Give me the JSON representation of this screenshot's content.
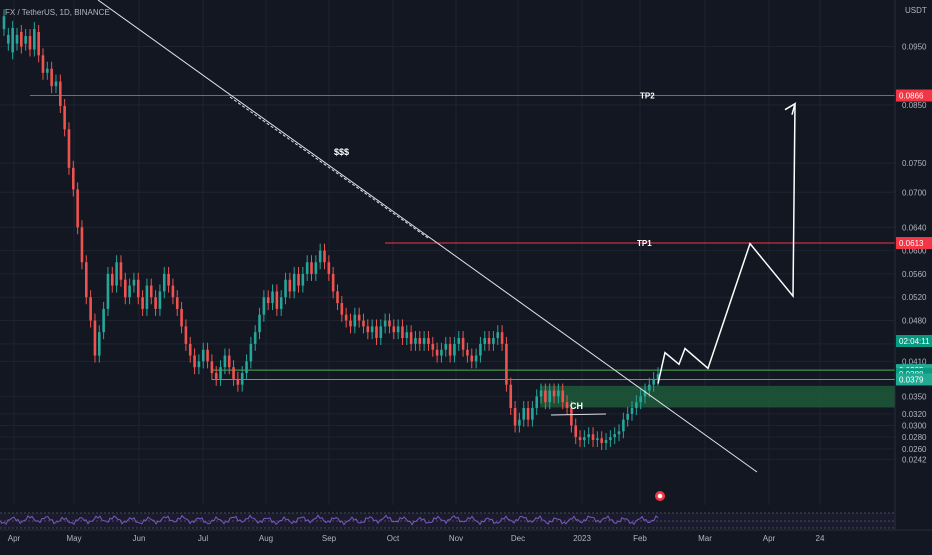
{
  "header": {
    "symbol_line": "FX / TetherUS, 1D, BINANCE"
  },
  "axis": {
    "currency": "USDT"
  },
  "chart_data": {
    "type": "candlestick",
    "xlabel": "",
    "ylabel": "",
    "ylim": [
      0.0218,
      0.1008
    ],
    "yticks": [
      "0.0950",
      "0.0850",
      "0.0750",
      "0.0700",
      "0.0640",
      "0.0600",
      "0.0560",
      "0.0520",
      "0.0480",
      "0.0440",
      "0.0410",
      "0.0350",
      "0.0320",
      "0.0300",
      "0.0280",
      "0.0260",
      "0.0242"
    ],
    "xticks": [
      "Apr",
      "May",
      "Jun",
      "Jul",
      "Aug",
      "Sep",
      "Oct",
      "Nov",
      "Dec",
      "2023",
      "Feb",
      "Mar",
      "Apr",
      "24"
    ],
    "price_badges": [
      {
        "label": "0.0866",
        "value": 0.0866,
        "color": "#f23645"
      },
      {
        "label": "0.0613",
        "value": 0.0613,
        "color": "#f23645"
      },
      {
        "label": "0.0395",
        "value": 0.0395,
        "color": "#22ab94"
      },
      {
        "label": "0.0388",
        "value": 0.0388,
        "color": "#089981"
      },
      {
        "label": "02:04:11",
        "value": 0.0376,
        "color": "#089981"
      },
      {
        "label": "0.0379",
        "value": 0.0379,
        "color": "#22ab94"
      }
    ],
    "levels": [
      {
        "name": "TP2",
        "value": 0.0866,
        "color": "#f23645"
      },
      {
        "name": "TP1",
        "value": 0.0613,
        "color": "#f23645"
      },
      {
        "name": "",
        "value": 0.0395,
        "color": "#4caf50"
      },
      {
        "name": "",
        "value": 0.0379,
        "color": "#4caf50"
      }
    ],
    "zone": {
      "top": 0.0368,
      "bottom": 0.0331,
      "color": "#1e5b3a"
    },
    "annotations": [
      {
        "text": "$$$"
      },
      {
        "text": "CH"
      },
      {
        "text": "TP1"
      },
      {
        "text": "TP2"
      }
    ],
    "price_path": [
      [
        0.098,
        0.1002
      ],
      [
        0.0955,
        0.097
      ],
      [
        0.094,
        0.0982
      ],
      [
        0.0955,
        0.097
      ],
      [
        0.0975,
        0.095
      ],
      [
        0.0955,
        0.0968
      ],
      [
        0.0968,
        0.0945
      ],
      [
        0.0945,
        0.098
      ],
      [
        0.0975,
        0.0935
      ],
      [
        0.0935,
        0.0905
      ],
      [
        0.0905,
        0.0912
      ],
      [
        0.0912,
        0.0882
      ],
      [
        0.0882,
        0.089
      ],
      [
        0.089,
        0.0848
      ],
      [
        0.0848,
        0.0808
      ],
      [
        0.0808,
        0.0742
      ],
      [
        0.0742,
        0.0705
      ],
      [
        0.0705,
        0.064
      ],
      [
        0.064,
        0.058
      ],
      [
        0.058,
        0.052
      ],
      [
        0.052,
        0.048
      ],
      [
        0.048,
        0.042
      ],
      [
        0.042,
        0.046
      ],
      [
        0.046,
        0.05
      ],
      [
        0.05,
        0.056
      ],
      [
        0.056,
        0.054
      ],
      [
        0.054,
        0.058
      ],
      [
        0.058,
        0.055
      ],
      [
        0.055,
        0.052
      ],
      [
        0.052,
        0.054
      ],
      [
        0.054,
        0.055
      ],
      [
        0.055,
        0.052
      ],
      [
        0.052,
        0.05
      ],
      [
        0.05,
        0.054
      ],
      [
        0.054,
        0.052
      ],
      [
        0.052,
        0.05
      ],
      [
        0.05,
        0.053
      ],
      [
        0.053,
        0.056
      ],
      [
        0.056,
        0.054
      ],
      [
        0.054,
        0.052
      ],
      [
        0.052,
        0.05
      ],
      [
        0.05,
        0.047
      ],
      [
        0.047,
        0.044
      ],
      [
        0.044,
        0.042
      ],
      [
        0.042,
        0.04
      ],
      [
        0.04,
        0.041
      ],
      [
        0.041,
        0.043
      ],
      [
        0.043,
        0.041
      ],
      [
        0.041,
        0.039
      ],
      [
        0.039,
        0.038
      ],
      [
        0.038,
        0.04
      ],
      [
        0.04,
        0.042
      ],
      [
        0.042,
        0.04
      ],
      [
        0.04,
        0.038
      ],
      [
        0.038,
        0.037
      ],
      [
        0.037,
        0.039
      ],
      [
        0.039,
        0.041
      ],
      [
        0.041,
        0.044
      ],
      [
        0.044,
        0.046
      ],
      [
        0.046,
        0.049
      ],
      [
        0.049,
        0.052
      ],
      [
        0.052,
        0.051
      ],
      [
        0.051,
        0.053
      ],
      [
        0.053,
        0.05
      ],
      [
        0.05,
        0.052
      ],
      [
        0.052,
        0.055
      ],
      [
        0.055,
        0.053
      ],
      [
        0.053,
        0.056
      ],
      [
        0.056,
        0.054
      ],
      [
        0.054,
        0.056
      ],
      [
        0.056,
        0.058
      ],
      [
        0.058,
        0.056
      ],
      [
        0.056,
        0.058
      ],
      [
        0.058,
        0.06
      ],
      [
        0.06,
        0.058
      ],
      [
        0.058,
        0.056
      ],
      [
        0.056,
        0.053
      ],
      [
        0.053,
        0.051
      ],
      [
        0.051,
        0.049
      ],
      [
        0.049,
        0.048
      ],
      [
        0.048,
        0.047
      ],
      [
        0.047,
        0.049
      ],
      [
        0.049,
        0.048
      ],
      [
        0.048,
        0.047
      ],
      [
        0.047,
        0.046
      ],
      [
        0.046,
        0.047
      ],
      [
        0.047,
        0.045
      ],
      [
        0.045,
        0.047
      ],
      [
        0.047,
        0.048
      ],
      [
        0.048,
        0.047
      ],
      [
        0.047,
        0.046
      ],
      [
        0.046,
        0.047
      ],
      [
        0.047,
        0.045
      ],
      [
        0.045,
        0.046
      ],
      [
        0.046,
        0.044
      ],
      [
        0.044,
        0.045
      ],
      [
        0.045,
        0.044
      ],
      [
        0.044,
        0.045
      ],
      [
        0.045,
        0.044
      ],
      [
        0.044,
        0.043
      ],
      [
        0.043,
        0.042
      ],
      [
        0.042,
        0.043
      ],
      [
        0.043,
        0.044
      ],
      [
        0.044,
        0.042
      ],
      [
        0.042,
        0.044
      ],
      [
        0.044,
        0.045
      ],
      [
        0.045,
        0.043
      ],
      [
        0.043,
        0.042
      ],
      [
        0.042,
        0.041
      ],
      [
        0.041,
        0.042
      ],
      [
        0.042,
        0.044
      ],
      [
        0.044,
        0.045
      ],
      [
        0.045,
        0.044
      ],
      [
        0.044,
        0.045
      ],
      [
        0.045,
        0.046
      ],
      [
        0.046,
        0.044
      ],
      [
        0.044,
        0.037
      ],
      [
        0.037,
        0.033
      ],
      [
        0.033,
        0.03
      ],
      [
        0.03,
        0.031
      ],
      [
        0.031,
        0.033
      ],
      [
        0.033,
        0.031
      ],
      [
        0.031,
        0.033
      ],
      [
        0.033,
        0.035
      ],
      [
        0.035,
        0.036
      ],
      [
        0.036,
        0.034
      ],
      [
        0.034,
        0.036
      ],
      [
        0.036,
        0.035
      ],
      [
        0.035,
        0.036
      ],
      [
        0.036,
        0.034
      ],
      [
        0.034,
        0.033
      ],
      [
        0.033,
        0.03
      ],
      [
        0.03,
        0.028
      ],
      [
        0.028,
        0.0275
      ],
      [
        0.0275,
        0.028
      ],
      [
        0.028,
        0.0285
      ],
      [
        0.0285,
        0.0275
      ],
      [
        0.0275,
        0.0278
      ],
      [
        0.0278,
        0.027
      ],
      [
        0.027,
        0.0275
      ],
      [
        0.0275,
        0.028
      ],
      [
        0.028,
        0.0285
      ],
      [
        0.0285,
        0.029
      ],
      [
        0.029,
        0.031
      ],
      [
        0.031,
        0.032
      ],
      [
        0.032,
        0.033
      ],
      [
        0.033,
        0.034
      ],
      [
        0.034,
        0.035
      ],
      [
        0.035,
        0.036
      ],
      [
        0.036,
        0.037
      ],
      [
        0.037,
        0.038
      ],
      [
        0.038,
        0.0388
      ]
    ],
    "projection": [
      0.0372,
      0.0425,
      0.0405,
      0.0432,
      0.0398,
      0.0612,
      0.0522,
      0.0852
    ]
  }
}
